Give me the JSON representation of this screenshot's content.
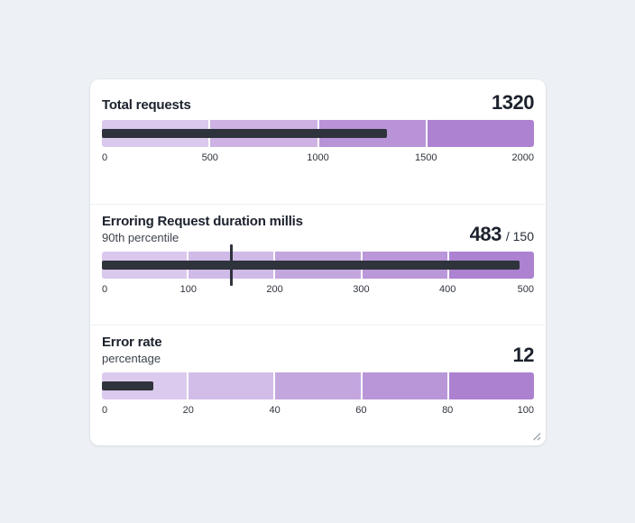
{
  "colors": {
    "page_bg": "#edf0f5",
    "card_bg": "#ffffff",
    "divider": "#eef0f4",
    "title_text": "#1c222d",
    "subtitle_text": "#3d434d",
    "tick_text": "#2e333c",
    "bar": "#2f333c"
  },
  "panels": [
    {
      "title": "Total requests",
      "value": "1320"
    },
    {
      "title": "Erroring Request duration millis",
      "subtitle": "90th percentile",
      "value": "483",
      "target_text": "/ 150"
    },
    {
      "title": "Error rate",
      "subtitle": "percentage",
      "value": "12"
    }
  ],
  "chart_data": [
    {
      "type": "bullet",
      "title": "Total requests",
      "value": 1320,
      "xlim": [
        0,
        2000
      ],
      "ticks": [
        0,
        500,
        1000,
        1500,
        2000
      ],
      "bands": [
        {
          "from": 0,
          "to": 500,
          "color": "#dac8ed"
        },
        {
          "from": 500,
          "to": 1000,
          "color": "#cdb2e3"
        },
        {
          "from": 1000,
          "to": 1500,
          "color": "#b893d8"
        },
        {
          "from": 1500,
          "to": 2000,
          "color": "#ac82d1"
        }
      ],
      "bar_color": "#2f333c"
    },
    {
      "type": "bullet",
      "title": "Erroring Request duration millis",
      "subtitle": "90th percentile",
      "value": 483,
      "target": 150,
      "xlim": [
        0,
        500
      ],
      "ticks": [
        0,
        100,
        200,
        300,
        400,
        500
      ],
      "bands": [
        {
          "from": 0,
          "to": 100,
          "color": "#dac8ed"
        },
        {
          "from": 100,
          "to": 200,
          "color": "#d0bae7"
        },
        {
          "from": 200,
          "to": 300,
          "color": "#c4a6df"
        },
        {
          "from": 300,
          "to": 400,
          "color": "#ba97d9"
        },
        {
          "from": 400,
          "to": 500,
          "color": "#ac82d1"
        }
      ],
      "bar_color": "#2f333c"
    },
    {
      "type": "bullet",
      "title": "Error rate",
      "subtitle": "percentage",
      "value": 12,
      "xlim": [
        0,
        100
      ],
      "ticks": [
        0,
        20,
        40,
        60,
        80,
        100
      ],
      "bands": [
        {
          "from": 0,
          "to": 20,
          "color": "#dccaee"
        },
        {
          "from": 20,
          "to": 40,
          "color": "#d2bde8"
        },
        {
          "from": 40,
          "to": 60,
          "color": "#c4a6df"
        },
        {
          "from": 60,
          "to": 80,
          "color": "#b996d8"
        },
        {
          "from": 80,
          "to": 100,
          "color": "#ab81d0"
        }
      ],
      "bar_color": "#2f333c"
    }
  ],
  "icons": {
    "resize_grip": "resize-grip-icon"
  }
}
